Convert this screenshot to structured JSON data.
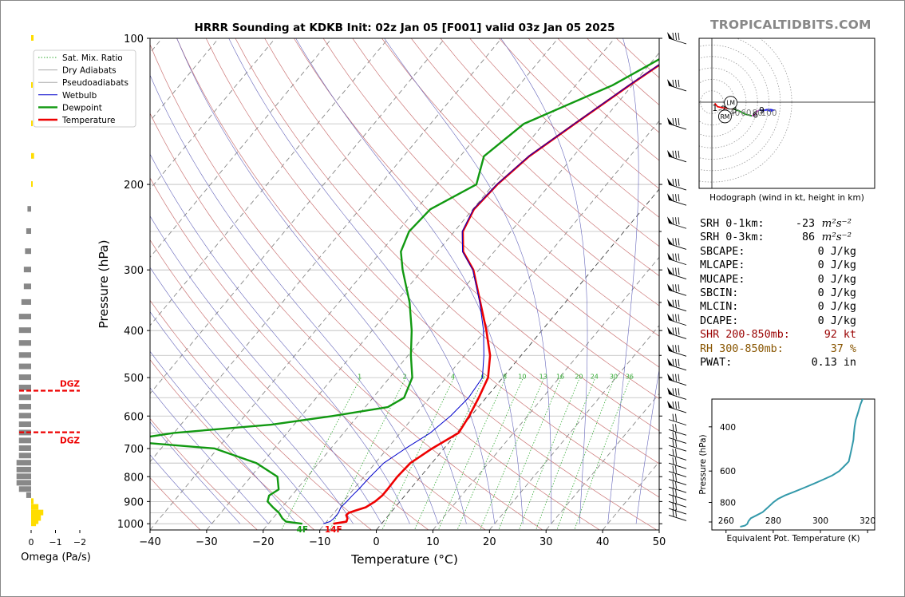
{
  "header": {
    "title": "HRRR Sounding at KDKB Init: 02z Jan 05 [F001] valid 03z Jan 05 2025",
    "brand": "TROPICALTIDBITS.COM"
  },
  "legend": [
    "Sat. Mix. Ratio",
    "Dry Adiabats",
    "Pseudoadiabats",
    "Wetbulb",
    "Dewpoint",
    "Temperature"
  ],
  "colors": {
    "temperature": "#ee0000",
    "dewpoint": "#119911",
    "wetbulb": "#0000cc",
    "mixratio": "#33aa33",
    "dry": "#cc7777",
    "moist": "#6666bb",
    "thetae": "#3399aa"
  },
  "chart_data": [
    {
      "type": "line",
      "name": "skewt",
      "xlabel": "Temperature (°C)",
      "ylabel": "Pressure (hPa)",
      "xlim": [
        -40,
        50
      ],
      "ylim": [
        1030,
        100
      ],
      "y_scale": "log",
      "xticks": [
        "−40",
        "−30",
        "−20",
        "−10",
        "0",
        "10",
        "20",
        "30",
        "40",
        "50"
      ],
      "yticks": [
        "100",
        "200",
        "300",
        "400",
        "500",
        "600",
        "700",
        "800",
        "900",
        "1000"
      ],
      "mixing_ratio_labels": [
        "1",
        "2",
        "4",
        "6",
        "8",
        "10",
        "13",
        "16",
        "20",
        "24",
        "30",
        "36"
      ],
      "series": [
        {
          "name": "Temperature",
          "p": [
            1000,
            990,
            975,
            960,
            950,
            940,
            925,
            900,
            875,
            850,
            800,
            750,
            700,
            650,
            600,
            550,
            500,
            450,
            400,
            350,
            300,
            275,
            250,
            225,
            200,
            175,
            150,
            125,
            100
          ],
          "t": [
            -8.5,
            -6.5,
            -6.8,
            -7.5,
            -7.4,
            -6.6,
            -5.2,
            -4.4,
            -4.0,
            -4.0,
            -4.1,
            -3.8,
            -2.1,
            0.3,
            -0.3,
            -1.3,
            -2.6,
            -5.5,
            -9.8,
            -15.0,
            -21.0,
            -25.5,
            -28.5,
            -29.8,
            -29.3,
            -27.8,
            -24.5,
            -20.5,
            -15.2
          ]
        },
        {
          "name": "Dewpoint",
          "p": [
            1000,
            990,
            975,
            950,
            925,
            900,
            875,
            850,
            800,
            750,
            700,
            675,
            650,
            625,
            600,
            575,
            550,
            500,
            450,
            400,
            350,
            300,
            275,
            250,
            225,
            200,
            175,
            150,
            125,
            100
          ],
          "t": [
            -14.0,
            -17.2,
            -18.3,
            -19.7,
            -21.6,
            -23.4,
            -24.0,
            -23.2,
            -25.3,
            -31.0,
            -40.5,
            -58.0,
            -50.0,
            -34.0,
            -24.5,
            -16.0,
            -14.5,
            -16.0,
            -19.5,
            -23.0,
            -27.5,
            -33.5,
            -36.5,
            -38.0,
            -37.5,
            -33.0,
            -35.8,
            -33.5,
            -23.5,
            -15.5
          ]
        },
        {
          "name": "Wetbulb",
          "p": [
            1000,
            990,
            975,
            950,
            925,
            900,
            875,
            850,
            800,
            750,
            700,
            650,
            600,
            550,
            500,
            450,
            400,
            350,
            300,
            275,
            250,
            225,
            200,
            175,
            150,
            125,
            100
          ],
          "t": [
            -10.3,
            -9.4,
            -9.2,
            -9.2,
            -9.6,
            -9.4,
            -9.3,
            -9.1,
            -8.9,
            -8.5,
            -6.8,
            -4.7,
            -3.6,
            -3.1,
            -3.6,
            -6.6,
            -10.3,
            -15.1,
            -21.1,
            -25.6,
            -28.6,
            -29.9,
            -29.4,
            -27.9,
            -24.6,
            -20.6,
            -15.3
          ]
        }
      ],
      "annotations": {
        "surface_temp": "14F",
        "surface_dewpoint": "4F",
        "dgz_label": "DGZ",
        "dgz_pressures": [
          532,
          648
        ]
      }
    },
    {
      "type": "bar",
      "name": "omega",
      "xlabel": "Omega (Pa/s)",
      "xlim": [
        0.3,
        -2.3
      ],
      "xticks": [
        "0",
        "−1",
        "−2"
      ],
      "p": [
        100,
        125,
        150,
        175,
        200,
        225,
        250,
        275,
        300,
        325,
        350,
        375,
        400,
        425,
        450,
        475,
        500,
        525,
        550,
        575,
        600,
        625,
        650,
        675,
        700,
        725,
        750,
        775,
        800,
        825,
        850,
        875,
        900,
        925,
        950,
        975,
        990,
        1000
      ],
      "values": [
        -0.1,
        0,
        -0.05,
        -0.12,
        -0.05,
        0.15,
        0.2,
        0.25,
        0.3,
        0.3,
        0.4,
        0.5,
        0.5,
        0.5,
        0.5,
        0.5,
        0.5,
        0.5,
        0.5,
        0.5,
        0.5,
        0.5,
        0.5,
        0.5,
        0.5,
        0.5,
        0.6,
        0.6,
        0.6,
        0.6,
        0.5,
        0.2,
        -0.1,
        -0.3,
        -0.5,
        -0.4,
        -0.3,
        -0.2
      ],
      "in_dgz_color": "#ffdd00",
      "other_color": "#888888"
    },
    {
      "type": "line",
      "name": "hodograph",
      "xlabel": "Hodograph (wind in kt, height in km)",
      "xticks": [
        "20",
        "40",
        "60",
        "80",
        "100"
      ],
      "points": [
        [
          5,
          -2
        ],
        [
          10,
          -8
        ],
        [
          20,
          -10
        ],
        [
          30,
          -11
        ],
        [
          38,
          -12
        ],
        [
          47,
          -15
        ],
        [
          58,
          -21
        ],
        [
          70,
          -24
        ],
        [
          76,
          -22
        ],
        [
          78,
          -17
        ],
        [
          83,
          -14
        ],
        [
          92,
          -14
        ],
        [
          103,
          -13
        ],
        [
          108,
          -14
        ],
        [
          103,
          -16
        ],
        [
          97,
          -13
        ],
        [
          88,
          -15
        ]
      ],
      "height_labels": [
        {
          "km": "1",
          "u": 4,
          "v": -10
        },
        {
          "km": "2",
          "u": 19,
          "v": -12
        },
        {
          "km": "3",
          "u": 38,
          "v": -13
        },
        {
          "km": "6",
          "u": 75,
          "v": -22
        },
        {
          "km": "9",
          "u": 86,
          "v": -14
        }
      ],
      "markers": [
        {
          "label": "LM",
          "u": 33,
          "v": -1
        },
        {
          "label": "RM",
          "u": 23,
          "v": -25
        }
      ],
      "segment_colors": [
        "#ee0000",
        "#119911",
        "#cc44cc",
        "#2222ee"
      ]
    },
    {
      "type": "line",
      "name": "theta_e",
      "xlabel": "Equivalent Pot. Temperature (K)",
      "ylabel": "Pressure (hPa)",
      "xlim": [
        254,
        323
      ],
      "ylim": [
        1030,
        310
      ],
      "xticks": [
        "260",
        "280",
        "300",
        "320"
      ],
      "yticks": [
        "400",
        "600",
        "800"
      ],
      "p": [
        1000,
        990,
        975,
        950,
        925,
        900,
        875,
        850,
        825,
        800,
        775,
        750,
        725,
        700,
        675,
        650,
        625,
        600,
        575,
        550,
        525,
        500,
        475,
        450,
        425,
        400,
        375,
        350,
        325,
        300
      ],
      "theta": [
        266.0,
        268.0,
        269.0,
        269.5,
        270.5,
        273.0,
        275.5,
        277.0,
        278.5,
        280.0,
        282.0,
        285.0,
        289.0,
        293.0,
        297.0,
        301.0,
        305.0,
        308.0,
        310.0,
        312.0,
        312.5,
        313.0,
        313.5,
        314.0,
        314.2,
        314.5,
        315.0,
        316.0,
        317.0,
        318.5
      ]
    }
  ],
  "stats": [
    {
      "label": "SRH 0-1km:",
      "value": "-23",
      "unit": "m²s⁻²",
      "color": "#000000"
    },
    {
      "label": "SRH 0-3km:",
      "value": "86",
      "unit": "m²s⁻²",
      "color": "#000000"
    },
    {
      "label": "SBCAPE:",
      "value": "0 J/kg",
      "unit": "",
      "color": "#000000"
    },
    {
      "label": "MLCAPE:",
      "value": "0 J/kg",
      "unit": "",
      "color": "#000000"
    },
    {
      "label": "MUCAPE:",
      "value": "0 J/kg",
      "unit": "",
      "color": "#000000"
    },
    {
      "label": "SBCIN:",
      "value": "0 J/kg",
      "unit": "",
      "color": "#000000"
    },
    {
      "label": "MLCIN:",
      "value": "0 J/kg",
      "unit": "",
      "color": "#000000"
    },
    {
      "label": "DCAPE:",
      "value": "0 J/kg",
      "unit": "",
      "color": "#000000"
    },
    {
      "label": "SHR 200-850mb:",
      "value": "92 kt",
      "unit": "",
      "color": "#990000"
    },
    {
      "label": "RH 300-850mb:",
      "value": "37 %",
      "unit": "",
      "color": "#885500"
    },
    {
      "label": "PWAT:",
      "value": "0.13 in",
      "unit": "",
      "color": "#000000"
    }
  ]
}
